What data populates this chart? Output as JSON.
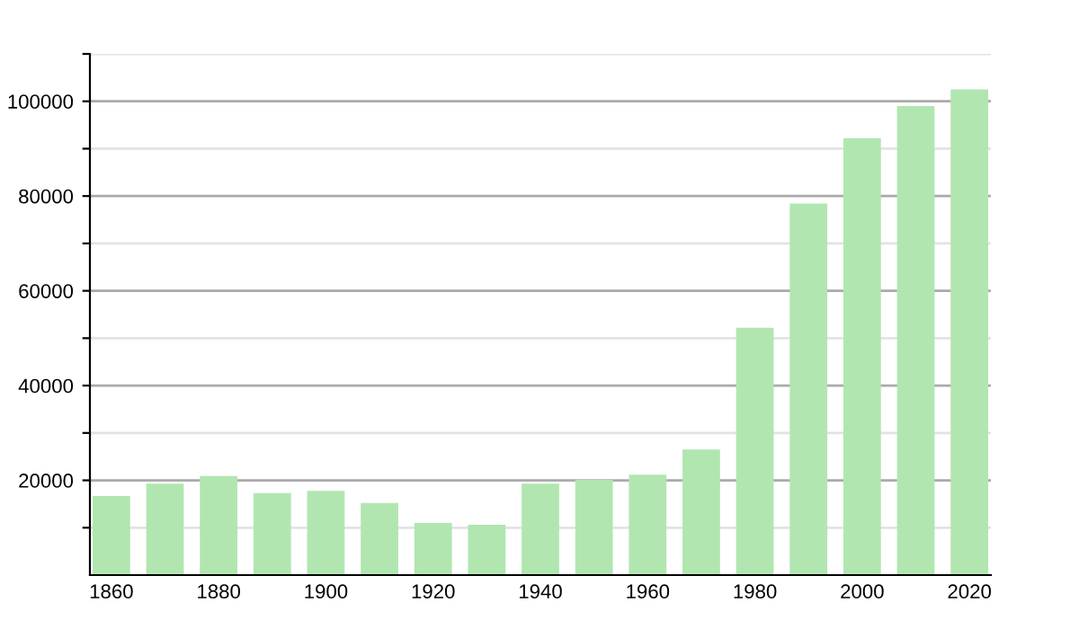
{
  "chart_data": {
    "type": "bar",
    "x": [
      1860,
      1870,
      1880,
      1890,
      1900,
      1910,
      1920,
      1930,
      1940,
      1950,
      1960,
      1970,
      1980,
      1990,
      2000,
      2010,
      2020
    ],
    "values": [
      16700,
      19300,
      20900,
      17300,
      17800,
      15200,
      11000,
      10600,
      19300,
      20100,
      21200,
      26500,
      52200,
      78400,
      92200,
      99000,
      102500
    ],
    "color": "#b1e6b1",
    "xlim": [
      1856,
      2024
    ],
    "xticks": [
      1860,
      1880,
      1900,
      1920,
      1940,
      1960,
      1980,
      2000,
      2020
    ],
    "ylim": [
      0,
      110000
    ],
    "yticks": [
      {
        "value": 10000,
        "label": null
      },
      20000,
      {
        "value": 30000,
        "label": null
      },
      40000,
      {
        "value": 50000,
        "label": null
      },
      60000,
      {
        "value": 70000,
        "label": null
      },
      80000,
      {
        "value": 90000,
        "label": null
      },
      100000,
      {
        "value": 110000,
        "label": null
      }
    ],
    "grid": "y",
    "legend": false
  }
}
